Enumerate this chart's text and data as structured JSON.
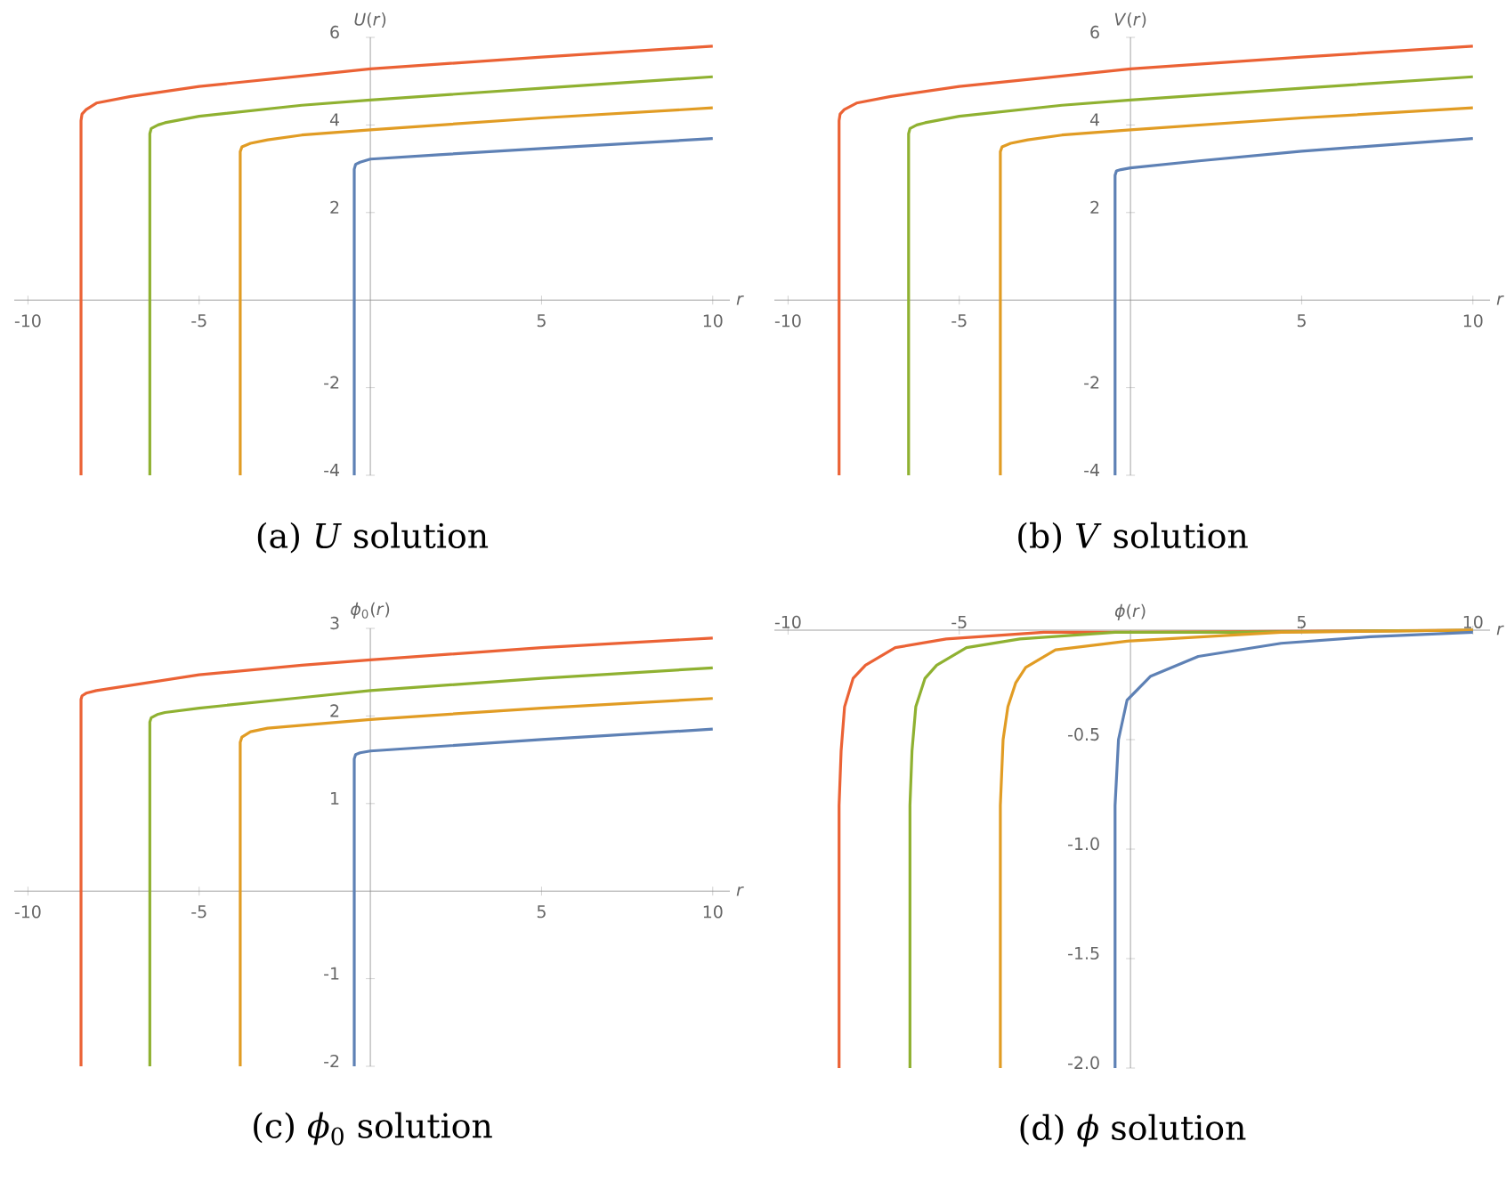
{
  "chart_data": [
    {
      "type": "line",
      "title": "(a) *U* solution",
      "xlabel": "*r*",
      "ylabel": "*U*(*r*)",
      "xlim": [
        -10.4,
        10.5
      ],
      "ylim": [
        -4,
        6
      ],
      "xticks": [
        -10,
        -5,
        5,
        10
      ],
      "yticks": [
        -4,
        -2,
        2,
        4,
        6
      ],
      "series": [
        {
          "color": "#eb6235",
          "x": [
            -8.45,
            -8.45,
            -8.42,
            -8.3,
            -8,
            -7,
            -5,
            -2,
            0,
            5,
            10
          ],
          "values": [
            -4,
            4.1,
            4.25,
            4.35,
            4.5,
            4.65,
            4.88,
            5.12,
            5.28,
            5.55,
            5.8
          ]
        },
        {
          "color": "#8fb131",
          "x": [
            -6.44,
            -6.44,
            -6.4,
            -6.2,
            -6,
            -5,
            -2,
            0,
            5,
            10
          ],
          "values": [
            -4,
            3.8,
            3.92,
            4.0,
            4.05,
            4.2,
            4.45,
            4.57,
            4.84,
            5.1
          ]
        },
        {
          "color": "#e19c24",
          "x": [
            -3.8,
            -3.8,
            -3.75,
            -3.5,
            -3,
            -2,
            0,
            5,
            10
          ],
          "values": [
            -4,
            3.39,
            3.5,
            3.58,
            3.66,
            3.77,
            3.89,
            4.16,
            4.39
          ]
        },
        {
          "color": "#5e81b5",
          "x": [
            -0.47,
            -0.47,
            -0.43,
            -0.3,
            0,
            2,
            5,
            10
          ],
          "values": [
            -4,
            2.99,
            3.1,
            3.15,
            3.22,
            3.32,
            3.46,
            3.69
          ]
        }
      ]
    },
    {
      "type": "line",
      "title": "(b) *V* solution",
      "xlabel": "*r*",
      "ylabel": "*V*(*r*)",
      "xlim": [
        -10.4,
        10.5
      ],
      "ylim": [
        -4,
        6
      ],
      "xticks": [
        -10,
        -5,
        5,
        10
      ],
      "yticks": [
        -4,
        -2,
        2,
        4,
        6
      ],
      "series": [
        {
          "color": "#eb6235",
          "x": [
            -8.51,
            -8.51,
            -8.48,
            -8.36,
            -8,
            -7,
            -5,
            -2,
            0,
            5,
            10
          ],
          "values": [
            -4,
            4.1,
            4.25,
            4.35,
            4.5,
            4.65,
            4.88,
            5.12,
            5.28,
            5.55,
            5.8
          ]
        },
        {
          "color": "#8fb131",
          "x": [
            -6.48,
            -6.48,
            -6.44,
            -6.24,
            -6,
            -5,
            -2,
            0,
            5,
            10
          ],
          "values": [
            -4,
            3.8,
            3.92,
            4.0,
            4.05,
            4.2,
            4.45,
            4.57,
            4.84,
            5.1
          ]
        },
        {
          "color": "#e19c24",
          "x": [
            -3.8,
            -3.8,
            -3.75,
            -3.5,
            -3,
            -2,
            0,
            5,
            10
          ],
          "values": [
            -4,
            3.39,
            3.5,
            3.58,
            3.66,
            3.77,
            3.89,
            4.16,
            4.39
          ]
        },
        {
          "color": "#5e81b5",
          "x": [
            -0.45,
            -0.45,
            -0.41,
            -0.28,
            0,
            2,
            5,
            10
          ],
          "values": [
            -4,
            2.85,
            2.95,
            2.98,
            3.02,
            3.18,
            3.4,
            3.69
          ]
        }
      ]
    },
    {
      "type": "line",
      "title": "(c) *ϕ*$_{0}$ solution",
      "xlabel": "*r*",
      "ylabel": "*ϕ*$_{0}$(*r*)",
      "xlim": [
        -10.4,
        10.5
      ],
      "ylim": [
        -2,
        3
      ],
      "xticks": [
        -10,
        -5,
        5,
        10
      ],
      "yticks": [
        -2,
        -1,
        1,
        2,
        3
      ],
      "series": [
        {
          "color": "#eb6235",
          "x": [
            -8.45,
            -8.45,
            -8.42,
            -8.3,
            -8,
            -5,
            -2,
            0,
            5,
            10
          ],
          "values": [
            -2,
            2.19,
            2.23,
            2.26,
            2.29,
            2.47,
            2.58,
            2.64,
            2.78,
            2.89
          ]
        },
        {
          "color": "#8fb131",
          "x": [
            -6.44,
            -6.44,
            -6.4,
            -6.2,
            -6,
            -5,
            -2,
            0,
            5,
            10
          ],
          "values": [
            -2,
            1.93,
            1.98,
            2.02,
            2.04,
            2.09,
            2.21,
            2.29,
            2.43,
            2.55
          ]
        },
        {
          "color": "#e19c24",
          "x": [
            -3.8,
            -3.8,
            -3.75,
            -3.5,
            -3,
            0,
            5,
            10
          ],
          "values": [
            -2,
            1.7,
            1.76,
            1.82,
            1.86,
            1.96,
            2.09,
            2.2
          ]
        },
        {
          "color": "#5e81b5",
          "x": [
            -0.47,
            -0.47,
            -0.43,
            -0.3,
            0,
            5,
            10
          ],
          "values": [
            -2,
            1.51,
            1.56,
            1.58,
            1.6,
            1.73,
            1.85
          ]
        }
      ]
    },
    {
      "type": "line",
      "title": "(d) *ϕ* solution",
      "xlabel": "*r*",
      "ylabel": "*ϕ*(*r*)",
      "xlim": [
        -10.4,
        10.5
      ],
      "ylim": [
        -2,
        0
      ],
      "xticks": [
        -10,
        -5,
        5,
        10
      ],
      "yticks": [
        {
          "value": -2,
          "label": "-2.0"
        },
        {
          "value": -1.5,
          "label": "-1.5"
        },
        {
          "value": -1,
          "label": "-1.0"
        },
        {
          "value": -0.5,
          "label": "-0.5"
        }
      ],
      "series": [
        {
          "color": "#eb6235",
          "x": [
            -8.51,
            -8.51,
            -8.45,
            -8.35,
            -8.1,
            -7.74,
            -6.87,
            -5.38,
            -2.53,
            0,
            10
          ],
          "values": [
            -2,
            -0.8,
            -0.55,
            -0.35,
            -0.22,
            -0.16,
            -0.08,
            -0.04,
            -0.01,
            -0.01,
            0
          ]
        },
        {
          "color": "#8fb131",
          "x": [
            -6.44,
            -6.44,
            -6.38,
            -6.27,
            -6,
            -5.66,
            -4.79,
            -3.23,
            -0.45,
            3,
            10
          ],
          "values": [
            -2,
            -0.8,
            -0.55,
            -0.35,
            -0.22,
            -0.16,
            -0.08,
            -0.04,
            -0.01,
            -0.01,
            0
          ]
        },
        {
          "color": "#e19c24",
          "x": [
            -3.8,
            -3.8,
            -3.72,
            -3.58,
            -3.35,
            -3.06,
            -2.19,
            -0.1,
            4.4,
            10
          ],
          "values": [
            -2,
            -0.8,
            -0.5,
            -0.35,
            -0.24,
            -0.17,
            -0.09,
            -0.05,
            -0.01,
            0
          ]
        },
        {
          "color": "#5e81b5",
          "x": [
            -0.45,
            -0.45,
            -0.35,
            -0.1,
            0.59,
            1.98,
            4.4,
            7.01,
            10
          ],
          "values": [
            -2,
            -0.8,
            -0.5,
            -0.32,
            -0.21,
            -0.12,
            -0.06,
            -0.03,
            -0.01
          ]
        }
      ]
    }
  ]
}
